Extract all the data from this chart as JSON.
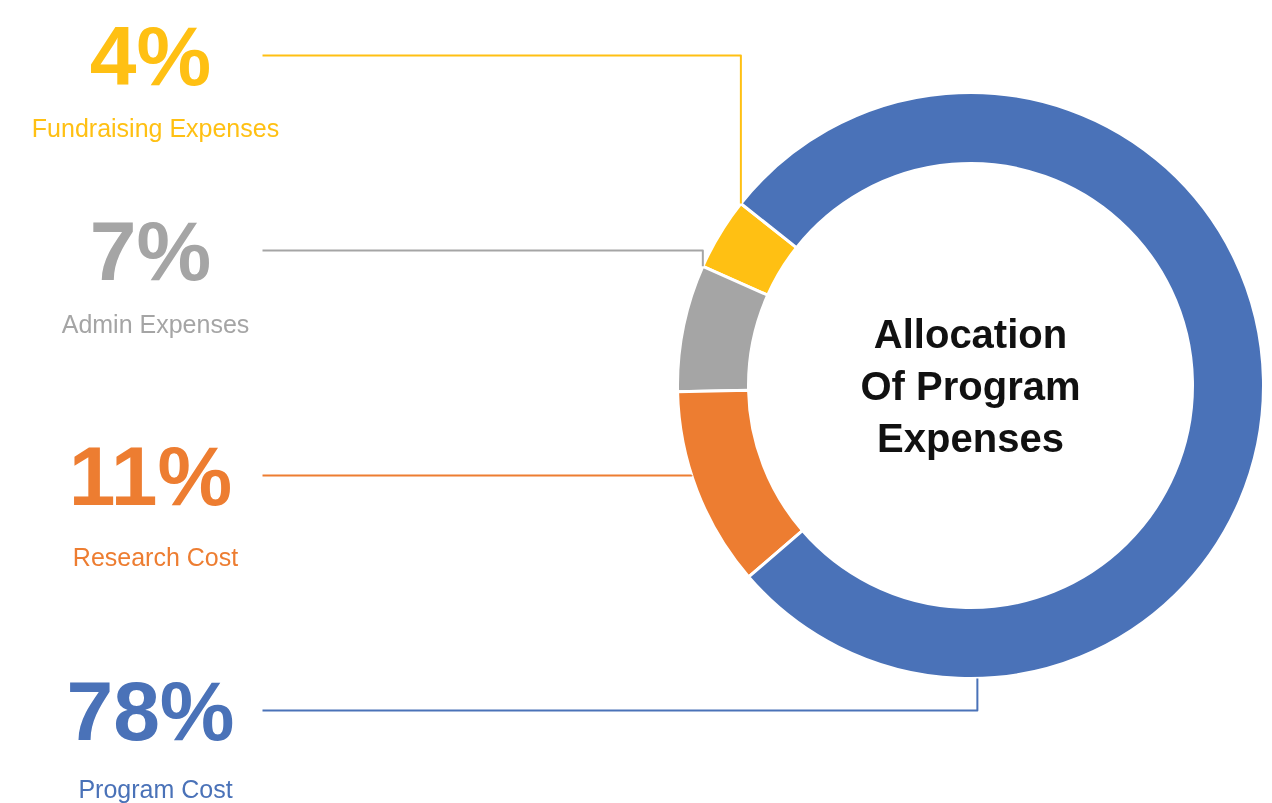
{
  "chart_data": {
    "type": "donut",
    "title": "Allocation Of Program Expenses",
    "categories": [
      "Fundraising Expenses",
      "Admin Expenses",
      "Research Cost",
      "Program Cost"
    ],
    "values": [
      4,
      7,
      11,
      78
    ],
    "colors": [
      "#ffc013",
      "#a5a5a5",
      "#ed7d31",
      "#4a72b8"
    ],
    "value_labels": [
      "4%",
      "7%",
      "11%",
      "78%"
    ]
  }
}
